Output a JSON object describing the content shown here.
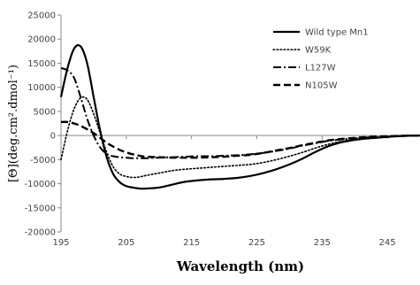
{
  "chart_data": {
    "type": "line",
    "title": "",
    "xlabel": "Wavelength (nm)",
    "ylabel": "[Θ](deg.cm².dmol⁻¹)",
    "xlim": [
      195,
      250
    ],
    "ylim": [
      -20000,
      25000
    ],
    "x_ticks": [
      195,
      205,
      215,
      225,
      235,
      245
    ],
    "y_ticks": [
      -20000,
      -15000,
      -10000,
      -5000,
      0,
      5000,
      10000,
      15000,
      20000,
      25000
    ],
    "x_tick_labels": [
      "195",
      "205",
      "215",
      "225",
      "235",
      "245"
    ],
    "y_tick_labels": [
      "-20000",
      "-15000",
      "-10000",
      "-5000",
      "0",
      "5000",
      "10000",
      "15000",
      "20000",
      "25000"
    ],
    "grid": false,
    "legend_position": "top-right",
    "series": [
      {
        "name": "Wild type Mn1",
        "style": "solid",
        "x": [
          195,
          196,
          197,
          198,
          199,
          200,
          201,
          202,
          203,
          204,
          205,
          206,
          207,
          208,
          210,
          212,
          214,
          216,
          218,
          220,
          222,
          224,
          226,
          228,
          230,
          232,
          234,
          236,
          238,
          240,
          242,
          244,
          246,
          248,
          250
        ],
        "y": [
          8000,
          14000,
          18000,
          18500,
          15000,
          8000,
          1000,
          -4500,
          -8000,
          -9700,
          -10500,
          -10800,
          -11000,
          -11000,
          -10800,
          -10200,
          -9600,
          -9300,
          -9100,
          -9000,
          -8800,
          -8400,
          -7800,
          -7000,
          -6000,
          -4800,
          -3400,
          -2200,
          -1400,
          -900,
          -600,
          -400,
          -200,
          -50,
          0
        ]
      },
      {
        "name": "W59K",
        "style": "dotted",
        "x": [
          195,
          196,
          197,
          198,
          199,
          200,
          201,
          202,
          203,
          204,
          205,
          206,
          207,
          208,
          210,
          212,
          214,
          216,
          218,
          220,
          222,
          224,
          226,
          228,
          230,
          232,
          234,
          236,
          238,
          240,
          242,
          244,
          246,
          248,
          250
        ],
        "y": [
          -5000,
          1000,
          5500,
          7800,
          7500,
          4500,
          500,
          -3500,
          -6500,
          -8000,
          -8500,
          -8700,
          -8600,
          -8300,
          -7800,
          -7300,
          -7000,
          -6800,
          -6600,
          -6400,
          -6200,
          -6000,
          -5600,
          -5000,
          -4300,
          -3500,
          -2600,
          -1800,
          -1200,
          -800,
          -500,
          -300,
          -150,
          -50,
          0
        ]
      },
      {
        "name": "L127W",
        "style": "dashdot",
        "x": [
          195,
          196,
          197,
          198,
          199,
          200,
          201,
          202,
          203,
          204,
          205,
          206,
          207,
          208,
          210,
          212,
          214,
          216,
          218,
          220,
          222,
          224,
          226,
          228,
          230,
          232,
          234,
          236,
          238,
          240,
          242,
          244,
          246,
          248,
          250
        ],
        "y": [
          14000,
          13500,
          12000,
          8000,
          3500,
          0,
          -2500,
          -3800,
          -4300,
          -4500,
          -4600,
          -4700,
          -4700,
          -4700,
          -4600,
          -4500,
          -4400,
          -4300,
          -4300,
          -4200,
          -4100,
          -3900,
          -3600,
          -3200,
          -2700,
          -2100,
          -1600,
          -1100,
          -800,
          -600,
          -400,
          -250,
          -150,
          -50,
          0
        ]
      },
      {
        "name": "N105W",
        "style": "dashed",
        "x": [
          195,
          196,
          197,
          198,
          199,
          200,
          201,
          202,
          203,
          204,
          205,
          206,
          207,
          208,
          210,
          212,
          214,
          216,
          218,
          220,
          222,
          224,
          226,
          228,
          230,
          232,
          234,
          236,
          238,
          240,
          242,
          244,
          246,
          248,
          250
        ],
        "y": [
          2800,
          2800,
          2500,
          2000,
          1300,
          500,
          -500,
          -1500,
          -2300,
          -3000,
          -3500,
          -3900,
          -4200,
          -4400,
          -4500,
          -4600,
          -4600,
          -4600,
          -4500,
          -4400,
          -4200,
          -4000,
          -3600,
          -3100,
          -2600,
          -2000,
          -1500,
          -1000,
          -700,
          -500,
          -300,
          -200,
          -100,
          -50,
          0
        ]
      }
    ]
  }
}
